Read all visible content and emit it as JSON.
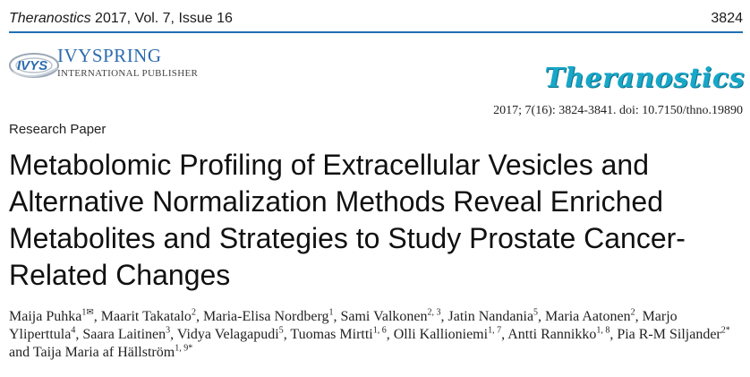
{
  "header": {
    "journal": "Theranostics",
    "issue_info": " 2017, Vol. 7, Issue 16",
    "page_number": "3824",
    "rule_color": "#1f6fb2"
  },
  "publisher_logo": {
    "icon_text": "IVYS",
    "name": "IVYSPRING",
    "subtitle": "INTERNATIONAL PUBLISHER"
  },
  "journal_logo": {
    "text": "Theranostics",
    "color": "#17a7c9"
  },
  "citation": "2017; 7(16): 3824-3841. doi: 10.7150/thno.19890",
  "paper_type": "Research Paper",
  "title": "Metabolomic Profiling of Extracellular Vesicles and Alternative Normalization Methods Reveal Enriched Metabolites and Strategies to Study Prostate Cancer-Related Changes",
  "authors": [
    {
      "name": "Maija Puhka",
      "sup": "1✉"
    },
    {
      "name": "Maarit Takatalo",
      "sup": "2"
    },
    {
      "name": "Maria-Elisa Nordberg",
      "sup": "1"
    },
    {
      "name": "Sami Valkonen",
      "sup": "2, 3"
    },
    {
      "name": "Jatin Nandania",
      "sup": "5"
    },
    {
      "name": "Maria Aatonen",
      "sup": "2"
    },
    {
      "name": "Marjo Yliperttula",
      "sup": "4"
    },
    {
      "name": "Saara Laitinen",
      "sup": "3"
    },
    {
      "name": "Vidya Velagapudi",
      "sup": "5"
    },
    {
      "name": "Tuomas Mirtti",
      "sup": "1, 6"
    },
    {
      "name": "Olli Kallioniemi",
      "sup": "1, 7"
    },
    {
      "name": "Antti Rannikko",
      "sup": "1, 8"
    },
    {
      "name": "Pia R-M Siljander",
      "sup": "2*"
    },
    {
      "name": "Taija Maria af Hällström",
      "sup": "1, 9*"
    }
  ]
}
